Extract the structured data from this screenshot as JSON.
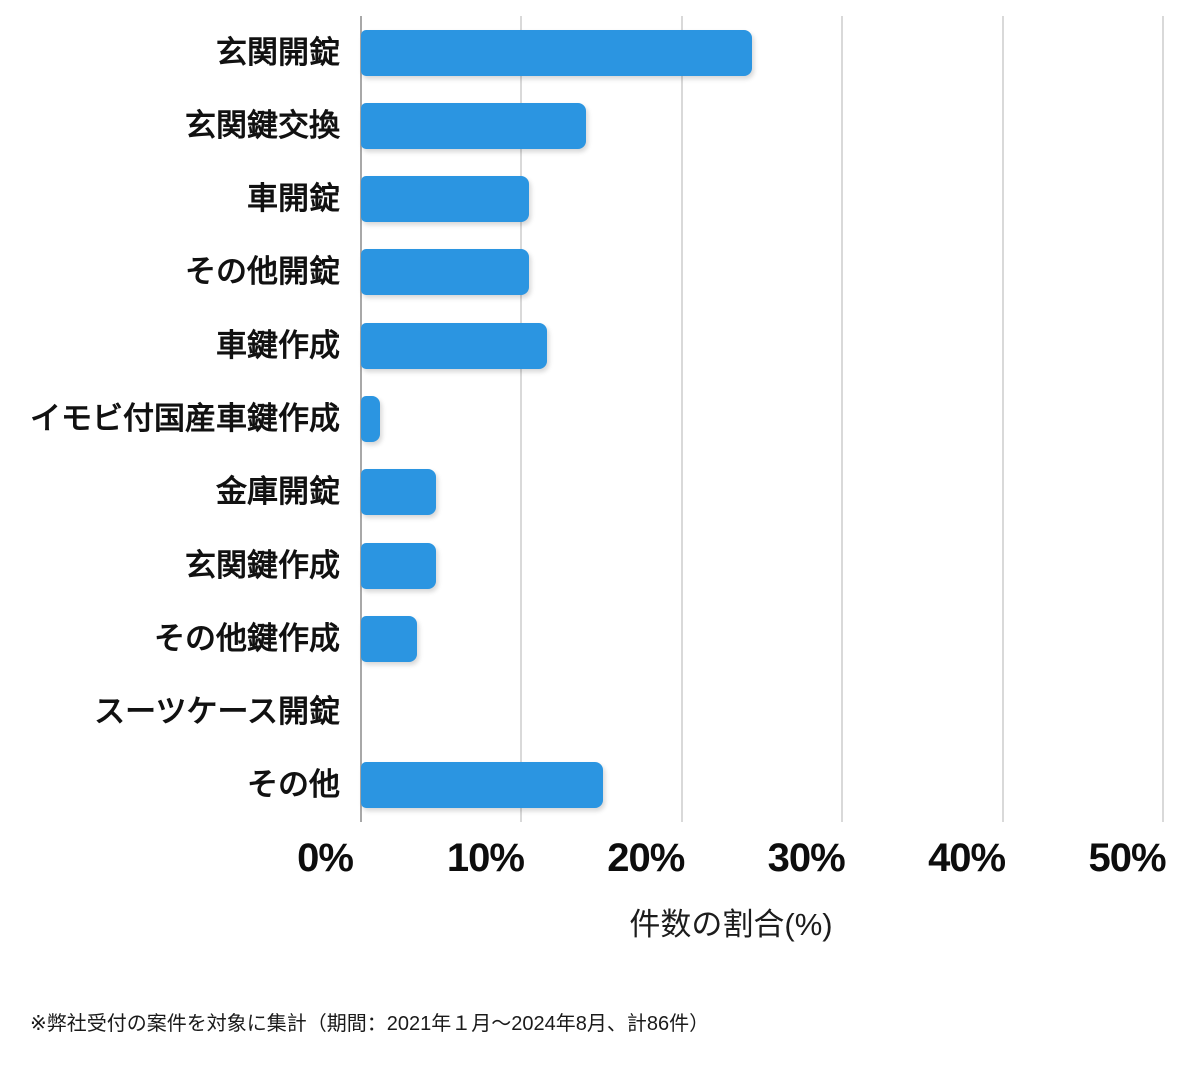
{
  "chart_data": {
    "type": "bar",
    "orientation": "horizontal",
    "title": "",
    "categories": [
      "玄関開錠",
      "玄関鍵交換",
      "車開錠",
      "その他開錠",
      "車鍵作成",
      "イモビ付国産車鍵作成",
      "金庫開錠",
      "玄関鍵作成",
      "その他鍵作成",
      "スーツケース開錠",
      "その他"
    ],
    "values": [
      24.4,
      14.0,
      10.5,
      10.5,
      11.6,
      1.2,
      4.7,
      4.7,
      3.5,
      0,
      15.1
    ],
    "xlabel": "件数の割合(%)",
    "ylabel": "",
    "x_ticks": [
      "0%",
      "10%",
      "20%",
      "30%",
      "40%",
      "50%"
    ],
    "x_tick_values": [
      0,
      10,
      20,
      30,
      40,
      50
    ],
    "xlim": [
      0,
      50
    ],
    "grid": true,
    "legend": false,
    "bar_color": "#2b95e1",
    "gridline_color": "#d9d9d9",
    "axis_line_color": "#a8a8a8"
  },
  "footnote": "※弊社受付の案件を対象に集計（期間：2021年１月～2024年8月、計86件）"
}
